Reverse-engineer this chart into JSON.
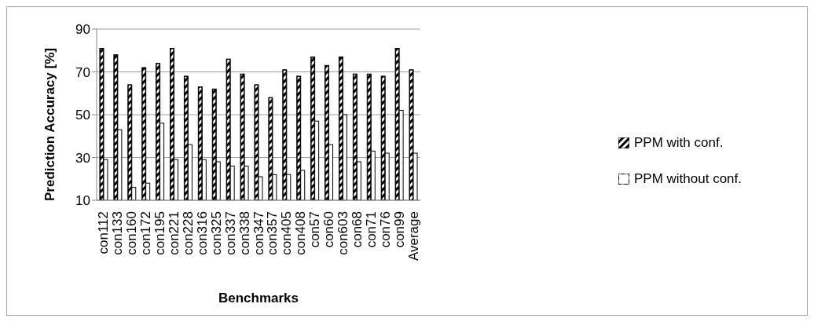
{
  "chart_data": {
    "type": "bar",
    "xlabel": "Benchmarks",
    "ylabel": "Prediction Accuracy [%]",
    "categories": [
      "con112",
      "con133",
      "con160",
      "con172",
      "con195",
      "con221",
      "con228",
      "con316",
      "con325",
      "con337",
      "con338",
      "con347",
      "con357",
      "con405",
      "con408",
      "con57",
      "con60",
      "con603",
      "con68",
      "con71",
      "con76",
      "con99",
      "Average"
    ],
    "series": [
      {
        "name": "PPM with conf.",
        "color": "#000000",
        "values": [
          81,
          78,
          64,
          72,
          74,
          81,
          68,
          63,
          62,
          76,
          69,
          64,
          58,
          71,
          68,
          77,
          73,
          77,
          69,
          69,
          68,
          81,
          71
        ]
      },
      {
        "name": "PPM without conf.",
        "color": "#ffffff",
        "values": [
          29,
          43,
          16,
          18,
          46,
          29,
          36,
          29,
          28,
          26,
          26,
          21,
          22,
          22,
          24,
          47,
          36,
          50,
          28,
          33,
          32,
          52,
          32
        ]
      }
    ],
    "ylim": [
      10,
      90
    ],
    "yticks": [
      10,
      30,
      50,
      70,
      90
    ],
    "grid": "y",
    "legend": "right"
  }
}
